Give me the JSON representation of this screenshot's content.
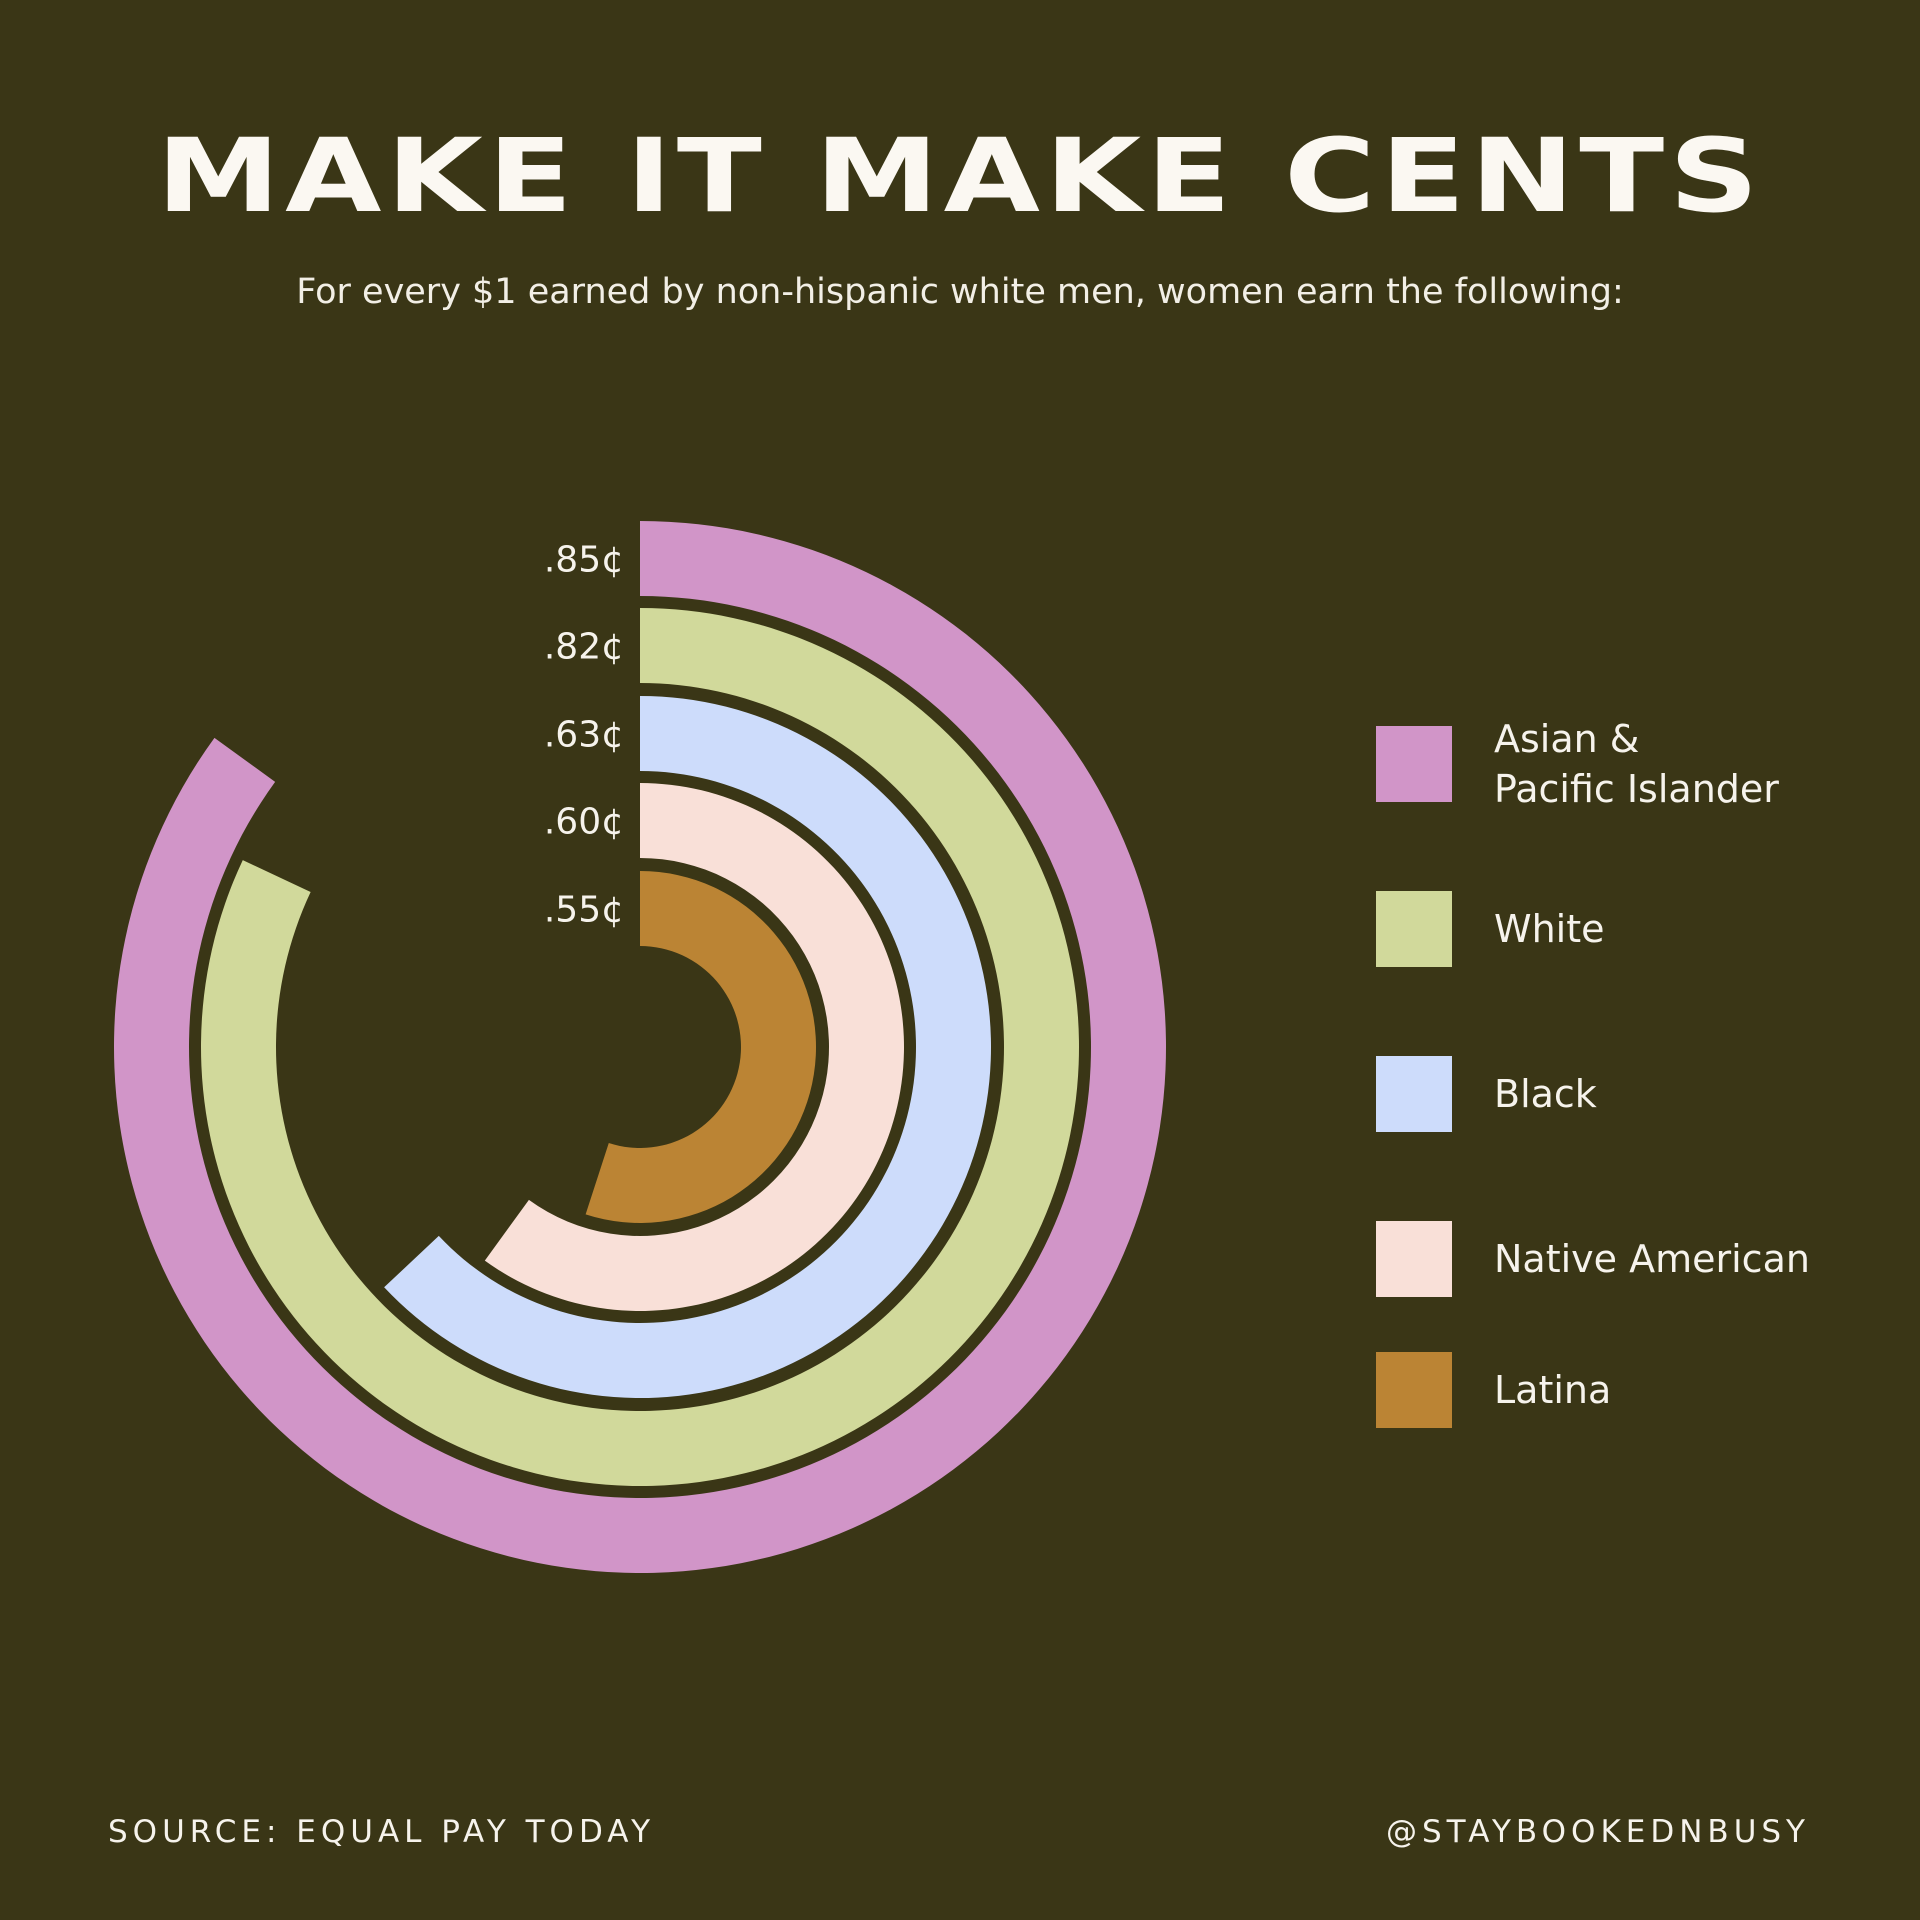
{
  "title": "MAKE IT MAKE CENTS",
  "subtitle": "For every $1 earned by non-hispanic white men, women earn the following:",
  "footer": {
    "source": "SOURCE: EQUAL PAY TODAY",
    "handle": "@STAYBOOKEDNBUSY"
  },
  "chart_data": {
    "type": "radial-bar",
    "unit_max": 1.0,
    "series": [
      {
        "name": "Asian &\nPacific Islander",
        "value": 0.85,
        "label": ".85¢",
        "color": "#d195c8"
      },
      {
        "name": "White",
        "value": 0.82,
        "label": ".82¢",
        "color": "#d1d99b"
      },
      {
        "name": "Black",
        "value": 0.63,
        "label": ".63¢",
        "color": "#cddcfb"
      },
      {
        "name": "Native American",
        "value": 0.6,
        "label": ".60¢",
        "color": "#f9e0d8"
      },
      {
        "name": "Latina",
        "value": 0.55,
        "label": ".55¢",
        "color": "#bb8434"
      }
    ],
    "background_color": "#3a3616"
  }
}
